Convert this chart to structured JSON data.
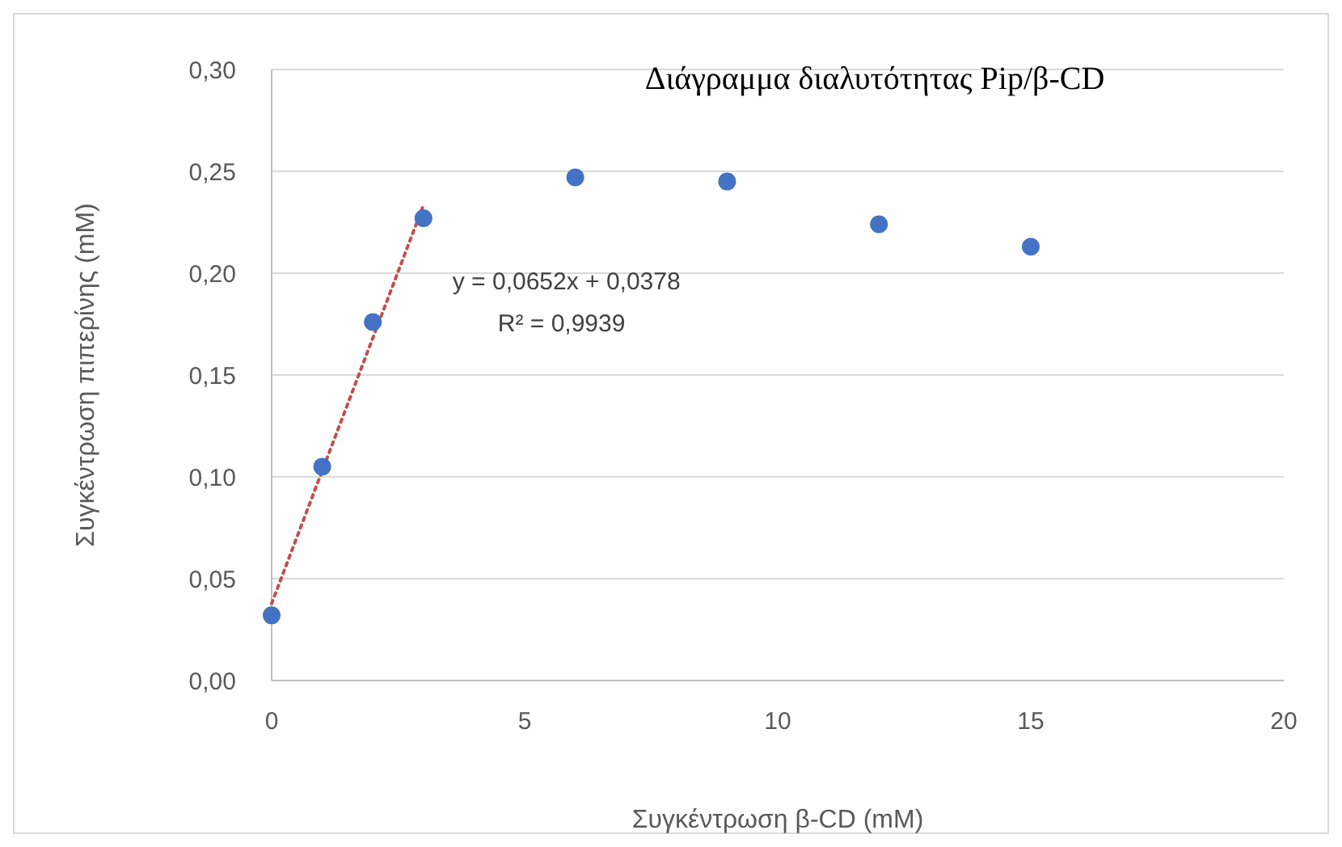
{
  "chart_data": {
    "type": "scatter",
    "title": "Διάγραμμα διαλυτότητας Pip/β-CD",
    "xlabel": "Συγκέντρωση β-CD (mM)",
    "ylabel": "Συγκέντρωση πιπερίνης (mM)",
    "annotations": [
      "y = 0,0652x + 0,0378",
      "R² = 0,9939"
    ],
    "series": [
      {
        "type": "scatter",
        "color": "#4472c4",
        "marker": "circle",
        "x": [
          0,
          1,
          2,
          3,
          6,
          9,
          12,
          15
        ],
        "values": [
          0.032,
          0.105,
          0.176,
          0.227,
          0.247,
          0.245,
          0.224,
          0.213
        ]
      },
      {
        "type": "line",
        "color": "#c0504d",
        "line_style": "dotted",
        "x": [
          0,
          3
        ],
        "values": [
          0.0378,
          0.2334
        ]
      }
    ],
    "xlim": [
      0,
      20
    ],
    "xticks": [
      0,
      5,
      10,
      15,
      20
    ],
    "ylim": [
      0,
      0.3
    ],
    "yticks": [
      {
        "value": 0,
        "label": "0,00"
      },
      {
        "value": 0.05,
        "label": "0,05"
      },
      {
        "value": 0.1,
        "label": "0,10"
      },
      {
        "value": 0.15,
        "label": "0,15"
      },
      {
        "value": 0.2,
        "label": "0,20"
      },
      {
        "value": 0.25,
        "label": "0,25"
      },
      {
        "value": 0.3,
        "label": "0,30"
      }
    ],
    "grid": "y"
  }
}
